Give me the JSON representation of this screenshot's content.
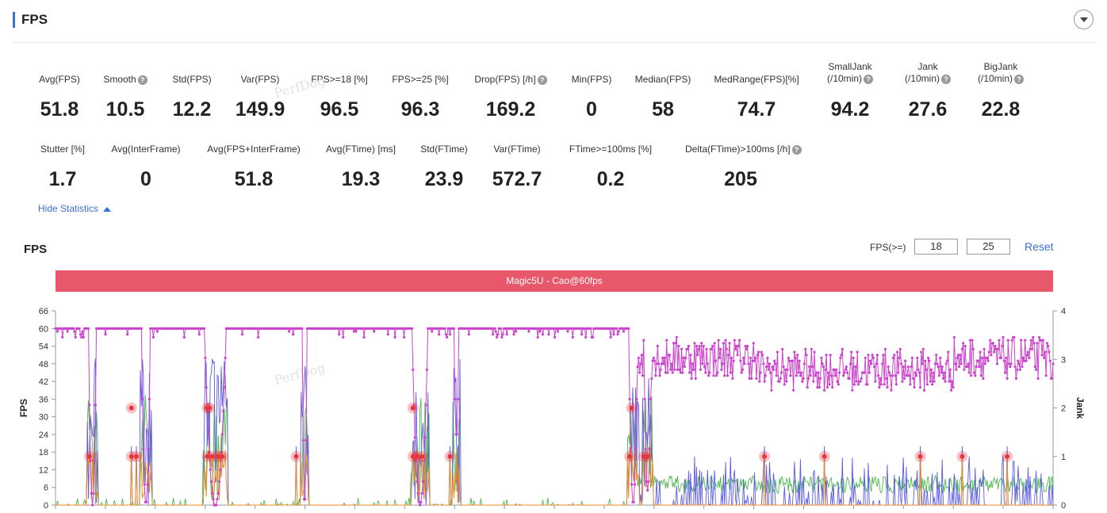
{
  "header": {
    "title": "FPS"
  },
  "stats_row1": [
    {
      "label": "Avg(FPS)",
      "value": "51.8",
      "help": false
    },
    {
      "label": "Smooth",
      "value": "10.5",
      "help": true
    },
    {
      "label": "Std(FPS)",
      "value": "12.2",
      "help": false
    },
    {
      "label": "Var(FPS)",
      "value": "149.9",
      "help": false
    },
    {
      "label": "FPS>=18 [%]",
      "value": "96.5",
      "help": false
    },
    {
      "label": "FPS>=25 [%]",
      "value": "96.3",
      "help": false
    },
    {
      "label": "Drop(FPS) [/h]",
      "value": "169.2",
      "help": true
    },
    {
      "label": "Min(FPS)",
      "value": "0",
      "help": false
    },
    {
      "label": "Median(FPS)",
      "value": "58",
      "help": false
    },
    {
      "label": "MedRange(FPS)[%]",
      "value": "74.7",
      "help": false
    },
    {
      "label": "SmallJank",
      "label2": "(/10min)",
      "value": "94.2",
      "help": true
    },
    {
      "label": "Jank",
      "label2": "(/10min)",
      "value": "27.6",
      "help": true
    },
    {
      "label": "BigJank",
      "label2": "(/10min)",
      "value": "22.8",
      "help": true
    }
  ],
  "stats_row2": [
    {
      "label": "Stutter [%]",
      "value": "1.7",
      "help": false
    },
    {
      "label": "Avg(InterFrame)",
      "value": "0",
      "help": false
    },
    {
      "label": "Avg(FPS+InterFrame)",
      "value": "51.8",
      "help": false
    },
    {
      "label": "Avg(FTime) [ms]",
      "value": "19.3",
      "help": false
    },
    {
      "label": "Std(FTime)",
      "value": "23.9",
      "help": false
    },
    {
      "label": "Var(FTime)",
      "value": "572.7",
      "help": false
    },
    {
      "label": "FTime>=100ms [%]",
      "value": "0.2",
      "help": false
    },
    {
      "label": "Delta(FTime)>100ms [/h]",
      "value": "205",
      "help": true
    }
  ],
  "hide_statistics": "Hide Statistics",
  "chart_controls": {
    "title": "FPS",
    "fps_ge_label": "FPS(>=)",
    "threshold1": "18",
    "threshold2": "25",
    "reset": "Reset"
  },
  "watermark": "PerfDog",
  "colors": {
    "fps": "#cc44cc",
    "banner": "#e9576a",
    "jank": "#5b5be6",
    "small_jank": "#4cb84c",
    "big_jank": "#f08a24",
    "jank_marker": "#e8363c",
    "accent": "#3b6fd8"
  },
  "chart_data": {
    "type": "line",
    "banner": "Magic5U - Cao@60fps",
    "ylabel_left": "FPS",
    "ylabel_right": "Jank",
    "ylim_left": [
      0,
      66
    ],
    "yticks_left": [
      0,
      6,
      12,
      18,
      24,
      30,
      36,
      42,
      48,
      54,
      60,
      66
    ],
    "ylim_right": [
      0,
      4
    ],
    "yticks_right": [
      0,
      1,
      2,
      3,
      4
    ],
    "fps_drop_segments": [
      {
        "s": 34,
        "e": 40,
        "min": 0
      },
      {
        "s": 87,
        "e": 94,
        "min": 0
      },
      {
        "s": 150,
        "e": 170,
        "min": 0
      },
      {
        "s": 248,
        "e": 251,
        "min": 0
      },
      {
        "s": 358,
        "e": 372,
        "min": 0
      },
      {
        "s": 400,
        "e": 403,
        "min": 22
      },
      {
        "s": 575,
        "e": 582,
        "min": 0
      },
      {
        "s": 590,
        "e": 596,
        "min": 5
      }
    ],
    "jank_events": [
      {
        "x": 34,
        "v": 1
      },
      {
        "x": 76,
        "v": 2
      },
      {
        "x": 76,
        "v": 1
      },
      {
        "x": 81,
        "v": 1
      },
      {
        "x": 152,
        "v": 2
      },
      {
        "x": 154,
        "v": 2
      },
      {
        "x": 152,
        "v": 1
      },
      {
        "x": 157,
        "v": 1
      },
      {
        "x": 163,
        "v": 1
      },
      {
        "x": 167,
        "v": 1
      },
      {
        "x": 241,
        "v": 1
      },
      {
        "x": 358,
        "v": 2
      },
      {
        "x": 358,
        "v": 1
      },
      {
        "x": 362,
        "v": 1
      },
      {
        "x": 367,
        "v": 1
      },
      {
        "x": 395,
        "v": 1
      },
      {
        "x": 577,
        "v": 2
      },
      {
        "x": 575,
        "v": 1
      },
      {
        "x": 589,
        "v": 1
      },
      {
        "x": 593,
        "v": 1
      },
      {
        "x": 710,
        "v": 1
      },
      {
        "x": 770,
        "v": 1
      },
      {
        "x": 866,
        "v": 1
      },
      {
        "x": 908,
        "v": 1
      },
      {
        "x": 953,
        "v": 1
      }
    ]
  }
}
